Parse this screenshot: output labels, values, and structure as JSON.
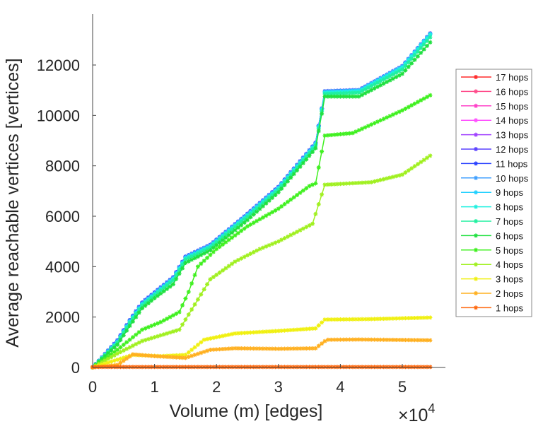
{
  "chart_data": {
    "type": "line",
    "title": "",
    "xlabel": "Volume (m) [edges]",
    "ylabel": "Average reachable vertices [vertices]",
    "x_multiplier": "×10",
    "x_multiplier_exp": "4",
    "xlim": [
      0,
      5.7
    ],
    "ylim": [
      0,
      14000
    ],
    "xticks": [
      "0",
      "1",
      "2",
      "3",
      "4",
      "5"
    ],
    "yticks": [
      "0",
      "2000",
      "4000",
      "6000",
      "8000",
      "10000",
      "12000"
    ],
    "grid": false,
    "legend_position": "right",
    "series": [
      {
        "name": "17 hops",
        "color": "#ff2a2a",
        "points": [
          [
            0,
            0
          ],
          [
            0.4,
            1050
          ],
          [
            0.6,
            1850
          ],
          [
            0.8,
            2550
          ],
          [
            1,
            2950
          ],
          [
            1.3,
            3550
          ],
          [
            1.5,
            4380
          ],
          [
            1.9,
            4850
          ],
          [
            2.5,
            6080
          ],
          [
            3,
            7150
          ],
          [
            3.5,
            8600
          ],
          [
            3.6,
            8900
          ],
          [
            3.75,
            10950
          ],
          [
            4.3,
            11000
          ],
          [
            5,
            11950
          ],
          [
            5.45,
            13250
          ]
        ]
      },
      {
        "name": "16 hops",
        "color": "#ff4a8a",
        "points": [
          [
            0,
            0
          ],
          [
            0.4,
            1050
          ],
          [
            0.6,
            1850
          ],
          [
            0.8,
            2550
          ],
          [
            1,
            2950
          ],
          [
            1.3,
            3550
          ],
          [
            1.5,
            4380
          ],
          [
            1.9,
            4850
          ],
          [
            2.5,
            6080
          ],
          [
            3,
            7150
          ],
          [
            3.5,
            8600
          ],
          [
            3.6,
            8900
          ],
          [
            3.75,
            10950
          ],
          [
            4.3,
            11000
          ],
          [
            5,
            11950
          ],
          [
            5.45,
            13250
          ]
        ]
      },
      {
        "name": "15 hops",
        "color": "#ff40c8",
        "points": [
          [
            0,
            0
          ],
          [
            0.4,
            1050
          ],
          [
            0.6,
            1850
          ],
          [
            0.8,
            2550
          ],
          [
            1,
            2950
          ],
          [
            1.3,
            3550
          ],
          [
            1.5,
            4380
          ],
          [
            1.9,
            4850
          ],
          [
            2.5,
            6080
          ],
          [
            3,
            7150
          ],
          [
            3.5,
            8600
          ],
          [
            3.6,
            8900
          ],
          [
            3.75,
            10950
          ],
          [
            4.3,
            11000
          ],
          [
            5,
            11950
          ],
          [
            5.45,
            13250
          ]
        ]
      },
      {
        "name": "14 hops",
        "color": "#ff50ff",
        "points": [
          [
            0,
            0
          ],
          [
            0.4,
            1050
          ],
          [
            0.6,
            1850
          ],
          [
            0.8,
            2550
          ],
          [
            1,
            2950
          ],
          [
            1.3,
            3550
          ],
          [
            1.5,
            4380
          ],
          [
            1.9,
            4850
          ],
          [
            2.5,
            6080
          ],
          [
            3,
            7150
          ],
          [
            3.5,
            8600
          ],
          [
            3.6,
            8900
          ],
          [
            3.75,
            10950
          ],
          [
            4.3,
            11000
          ],
          [
            5,
            11950
          ],
          [
            5.45,
            13250
          ]
        ]
      },
      {
        "name": "13 hops",
        "color": "#a040ff",
        "points": [
          [
            0,
            0
          ],
          [
            0.4,
            1050
          ],
          [
            0.6,
            1850
          ],
          [
            0.8,
            2550
          ],
          [
            1,
            2950
          ],
          [
            1.3,
            3550
          ],
          [
            1.5,
            4380
          ],
          [
            1.9,
            4850
          ],
          [
            2.5,
            6080
          ],
          [
            3,
            7150
          ],
          [
            3.5,
            8600
          ],
          [
            3.6,
            8900
          ],
          [
            3.75,
            10950
          ],
          [
            4.3,
            11000
          ],
          [
            5,
            11950
          ],
          [
            5.45,
            13250
          ]
        ]
      },
      {
        "name": "12 hops",
        "color": "#5a40ff",
        "points": [
          [
            0,
            0
          ],
          [
            0.4,
            1050
          ],
          [
            0.6,
            1850
          ],
          [
            0.8,
            2550
          ],
          [
            1,
            2950
          ],
          [
            1.3,
            3550
          ],
          [
            1.5,
            4380
          ],
          [
            1.9,
            4850
          ],
          [
            2.5,
            6080
          ],
          [
            3,
            7150
          ],
          [
            3.5,
            8600
          ],
          [
            3.6,
            8900
          ],
          [
            3.75,
            10950
          ],
          [
            4.3,
            11000
          ],
          [
            5,
            11950
          ],
          [
            5.45,
            13250
          ]
        ]
      },
      {
        "name": "11 hops",
        "color": "#2840ff",
        "points": [
          [
            0,
            0
          ],
          [
            0.4,
            1080
          ],
          [
            0.6,
            1880
          ],
          [
            0.8,
            2580
          ],
          [
            1,
            2980
          ],
          [
            1.3,
            3580
          ],
          [
            1.5,
            4400
          ],
          [
            1.9,
            4870
          ],
          [
            2.5,
            6100
          ],
          [
            3,
            7170
          ],
          [
            3.5,
            8620
          ],
          [
            3.6,
            8920
          ],
          [
            3.75,
            10960
          ],
          [
            4.3,
            11010
          ],
          [
            5,
            11960
          ],
          [
            5.45,
            13250
          ]
        ]
      },
      {
        "name": "10 hops",
        "color": "#40a0ff",
        "points": [
          [
            0,
            0
          ],
          [
            0.4,
            1050
          ],
          [
            0.6,
            1850
          ],
          [
            0.8,
            2550
          ],
          [
            1,
            2950
          ],
          [
            1.3,
            3550
          ],
          [
            1.5,
            4380
          ],
          [
            1.9,
            4850
          ],
          [
            2.5,
            6080
          ],
          [
            3,
            7150
          ],
          [
            3.5,
            8600
          ],
          [
            3.6,
            8900
          ],
          [
            3.75,
            10950
          ],
          [
            4.3,
            11000
          ],
          [
            5,
            11950
          ],
          [
            5.45,
            13250
          ]
        ]
      },
      {
        "name": "9 hops",
        "color": "#20d0ff",
        "points": [
          [
            0,
            0
          ],
          [
            0.4,
            1020
          ],
          [
            0.6,
            1820
          ],
          [
            0.8,
            2520
          ],
          [
            1,
            2920
          ],
          [
            1.3,
            3520
          ],
          [
            1.5,
            4350
          ],
          [
            1.9,
            4820
          ],
          [
            2.5,
            6050
          ],
          [
            3,
            7120
          ],
          [
            3.5,
            8570
          ],
          [
            3.6,
            8870
          ],
          [
            3.75,
            10920
          ],
          [
            4.3,
            10980
          ],
          [
            5,
            11920
          ],
          [
            5.45,
            13220
          ]
        ]
      },
      {
        "name": "8 hops",
        "color": "#20f0e0",
        "points": [
          [
            0,
            0
          ],
          [
            0.4,
            1000
          ],
          [
            0.6,
            1800
          ],
          [
            0.8,
            2500
          ],
          [
            1,
            2900
          ],
          [
            1.3,
            3500
          ],
          [
            1.5,
            4320
          ],
          [
            1.9,
            4800
          ],
          [
            2.5,
            6020
          ],
          [
            3,
            7100
          ],
          [
            3.5,
            8550
          ],
          [
            3.6,
            8850
          ],
          [
            3.75,
            10900
          ],
          [
            4.3,
            10950
          ],
          [
            5,
            11900
          ],
          [
            5.45,
            13200
          ]
        ]
      },
      {
        "name": "7 hops",
        "color": "#20f0a0",
        "points": [
          [
            0,
            0
          ],
          [
            0.4,
            980
          ],
          [
            0.6,
            1760
          ],
          [
            0.8,
            2460
          ],
          [
            1,
            2860
          ],
          [
            1.3,
            3450
          ],
          [
            1.5,
            4280
          ],
          [
            1.9,
            4760
          ],
          [
            2.5,
            5980
          ],
          [
            3,
            7050
          ],
          [
            3.5,
            8500
          ],
          [
            3.6,
            8800
          ],
          [
            3.75,
            10850
          ],
          [
            4.3,
            10900
          ],
          [
            5,
            11820
          ],
          [
            5.45,
            13100
          ]
        ]
      },
      {
        "name": "6 hops",
        "color": "#20e040",
        "points": [
          [
            0,
            0
          ],
          [
            0.4,
            900
          ],
          [
            0.6,
            1650
          ],
          [
            0.8,
            2350
          ],
          [
            1,
            2750
          ],
          [
            1.3,
            3300
          ],
          [
            1.5,
            4150
          ],
          [
            1.9,
            4650
          ],
          [
            2.5,
            5850
          ],
          [
            3,
            6950
          ],
          [
            3.5,
            8400
          ],
          [
            3.6,
            8700
          ],
          [
            3.75,
            10750
          ],
          [
            4.3,
            10750
          ],
          [
            5,
            11650
          ],
          [
            5.45,
            12900
          ]
        ]
      },
      {
        "name": "5 hops",
        "color": "#40f020",
        "points": [
          [
            0,
            0
          ],
          [
            0.4,
            700
          ],
          [
            0.8,
            1500
          ],
          [
            1.1,
            1800
          ],
          [
            1.4,
            2200
          ],
          [
            1.55,
            3000
          ],
          [
            1.7,
            4000
          ],
          [
            2,
            4700
          ],
          [
            2.5,
            5600
          ],
          [
            3,
            6300
          ],
          [
            3.5,
            7200
          ],
          [
            3.6,
            7300
          ],
          [
            3.75,
            9200
          ],
          [
            4.2,
            9300
          ],
          [
            5,
            10200
          ],
          [
            5.45,
            10800
          ]
        ]
      },
      {
        "name": "4 hops",
        "color": "#a0f020",
        "points": [
          [
            0,
            0
          ],
          [
            0.4,
            550
          ],
          [
            0.8,
            1050
          ],
          [
            1.4,
            1500
          ],
          [
            1.6,
            2300
          ],
          [
            1.9,
            3500
          ],
          [
            2.3,
            4200
          ],
          [
            2.7,
            4700
          ],
          [
            3,
            5000
          ],
          [
            3.55,
            5700
          ],
          [
            3.75,
            7250
          ],
          [
            4.5,
            7350
          ],
          [
            5,
            7650
          ],
          [
            5.45,
            8400
          ]
        ]
      },
      {
        "name": "3 hops",
        "color": "#f0f010",
        "points": [
          [
            0,
            0
          ],
          [
            0.65,
            500
          ],
          [
            1.1,
            450
          ],
          [
            1.5,
            500
          ],
          [
            1.8,
            1100
          ],
          [
            2.3,
            1350
          ],
          [
            3,
            1450
          ],
          [
            3.6,
            1550
          ],
          [
            3.75,
            1900
          ],
          [
            4.5,
            1920
          ],
          [
            5.45,
            1980
          ]
        ]
      },
      {
        "name": "2 hops",
        "color": "#ffb020",
        "points": [
          [
            0,
            0
          ],
          [
            0.4,
            100
          ],
          [
            0.65,
            520
          ],
          [
            1,
            450
          ],
          [
            1.5,
            380
          ],
          [
            1.9,
            700
          ],
          [
            2.3,
            760
          ],
          [
            3,
            740
          ],
          [
            3.6,
            760
          ],
          [
            3.78,
            1100
          ],
          [
            4.3,
            1110
          ],
          [
            5.45,
            1080
          ]
        ]
      },
      {
        "name": "1 hops",
        "color": "#ff6a10",
        "points": [
          [
            0,
            20
          ],
          [
            5.45,
            20
          ]
        ]
      }
    ]
  }
}
